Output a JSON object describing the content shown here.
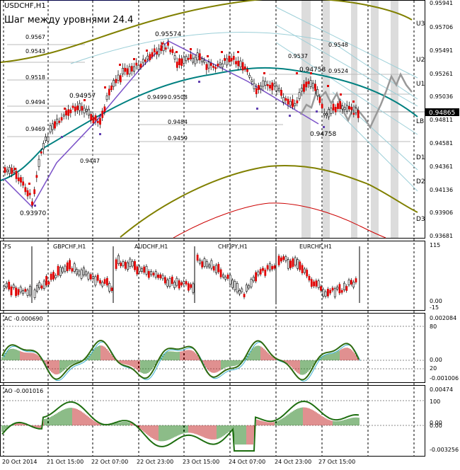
{
  "main": {
    "symbol": "USDCHF,H1",
    "caption": "Шаг между уровнями 24.4",
    "current_price": "0.94865",
    "price_scale": [
      "0.95941",
      "0.95706",
      "0.95491",
      "0.95261",
      "0.95036",
      "0.94811",
      "0.94581",
      "0.94361",
      "0.94136",
      "0.93906",
      "0.93681"
    ],
    "level_labels": [
      "U3",
      "U2",
      "U1",
      "LB",
      "D1",
      "D2",
      "D3"
    ],
    "annotations": [
      "0.95574",
      "0.9567",
      "0.9543",
      "0.9518",
      "0.9494",
      "0.9469",
      "0.9447",
      "0.94957",
      "0.9499",
      "0.9508",
      "0.9484",
      "0.9459",
      "0.9537",
      "0.9548",
      "0.9524",
      "0.94758",
      "0.94758",
      "0.93970"
    ]
  },
  "fs_panel": {
    "title": "FS",
    "pairs": [
      "GBPCHF,H1",
      "AUDCHF,H1",
      "CHFJPY,H1",
      "EURCHF,H1"
    ],
    "scale": [
      "115",
      "0.00",
      "-15"
    ]
  },
  "ac_panel": {
    "title": "AC -0.000690",
    "scale": [
      "0.002084",
      "80",
      "0.00",
      "20",
      "-0.001006"
    ]
  },
  "ao_panel": {
    "title": "AO -0.001016",
    "scale": [
      "0.00474",
      "100",
      "0.00",
      "0.00",
      "-0.003256"
    ]
  },
  "time_axis": [
    "20 Oct 2014",
    "21 Oct 15:00",
    "22 Oct 07:00",
    "22 Oct 23:00",
    "23 Oct 15:00",
    "24 Oct 07:00",
    "24 Oct 23:00",
    "27 Oct 15:00"
  ]
}
